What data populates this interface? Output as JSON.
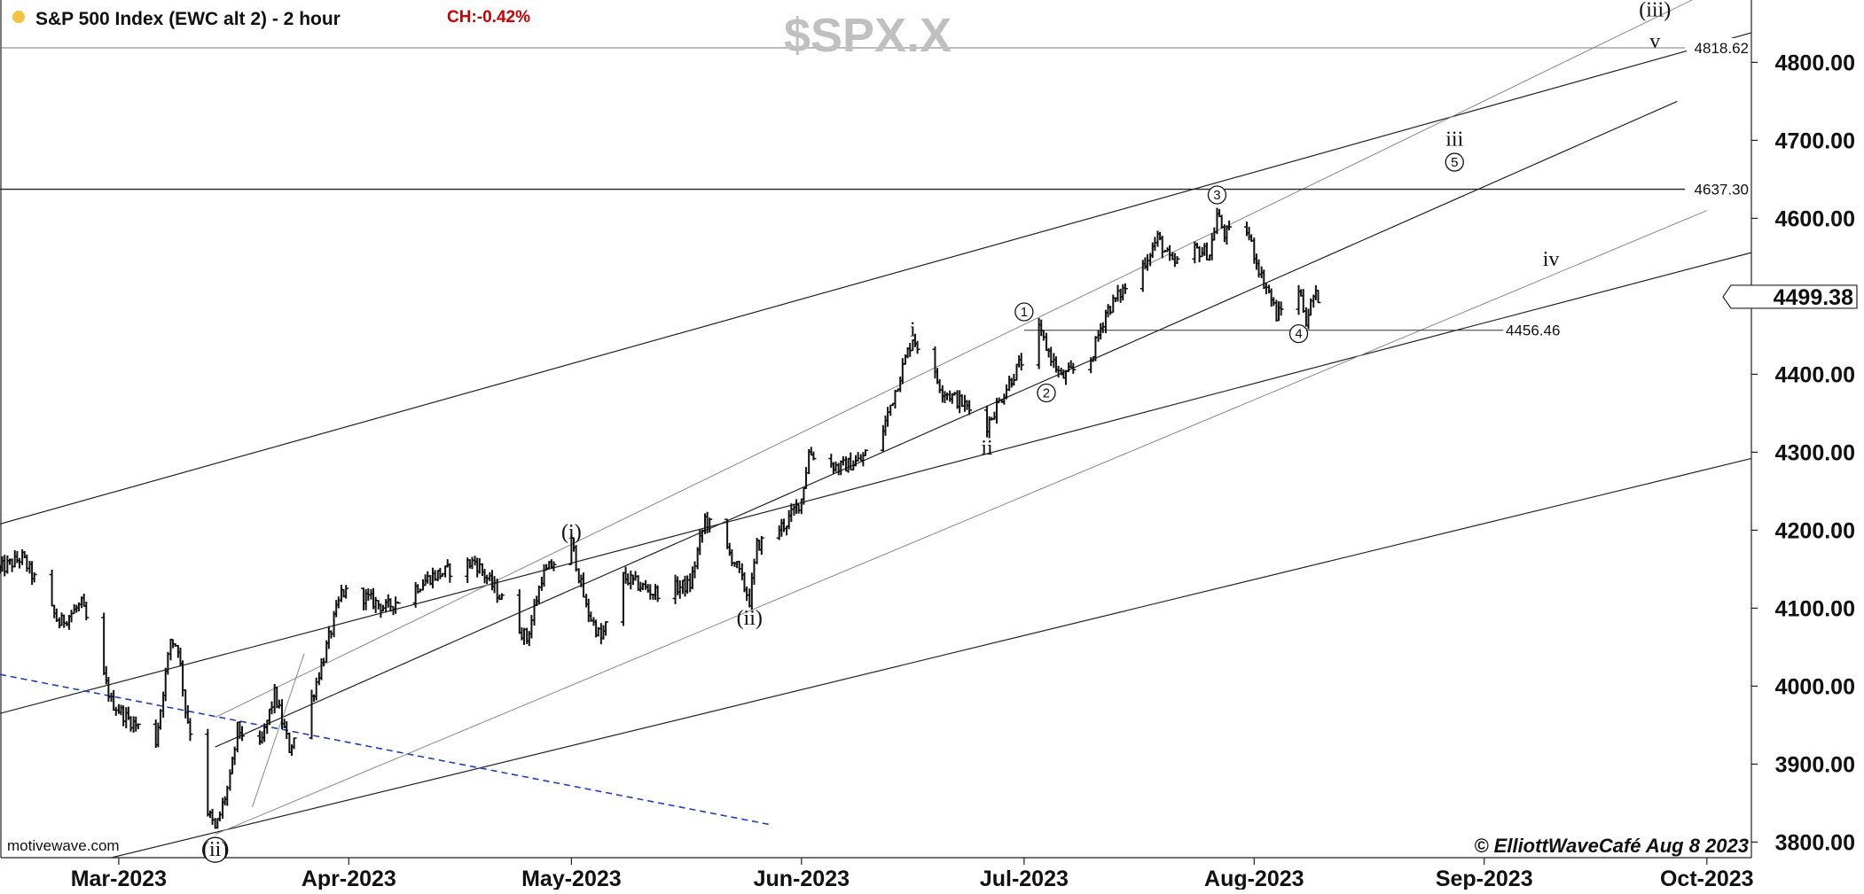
{
  "header": {
    "status_dot_color": "#f5c342",
    "title": "S&P 500 Index (EWC alt 2) - 2 hour",
    "change": "CH:-0.42%",
    "change_color": "#cc0000",
    "symbol": "$SPX.X"
  },
  "footer": {
    "source": "motivewave.com",
    "copyright": "© ElliottWaveCafé Aug 8 2023"
  },
  "chart_data": {
    "type": "ohlc",
    "title": "S&P 500 Index (EWC alt 2) - 2 hour",
    "ylim": [
      3780,
      4880
    ],
    "xlim": [
      "2023-02-13",
      "2023-10-07"
    ],
    "y_ticks": [
      "3800.00",
      "3900.00",
      "4000.00",
      "4100.00",
      "4200.00",
      "4300.00",
      "4400.00",
      "4500.00",
      "4600.00",
      "4700.00",
      "4800.00"
    ],
    "x_ticks": [
      {
        "date": "2023-03-01",
        "label": "Mar-2023"
      },
      {
        "date": "2023-04-01",
        "label": "Apr-2023"
      },
      {
        "date": "2023-05-01",
        "label": "May-2023"
      },
      {
        "date": "2023-06-01",
        "label": "Jun-2023"
      },
      {
        "date": "2023-07-01",
        "label": "Jul-2023"
      },
      {
        "date": "2023-08-01",
        "label": "Aug-2023"
      },
      {
        "date": "2023-09-01",
        "label": "Sep-2023"
      },
      {
        "date": "2023-10-01",
        "label": "Oct-2023"
      }
    ],
    "current_price": "4499.38",
    "price_path": [
      [
        "2023-02-13",
        4150
      ],
      [
        "2023-02-16",
        4165
      ],
      [
        "2023-02-21",
        4080
      ],
      [
        "2023-02-24",
        4105
      ],
      [
        "2023-02-28",
        3980
      ],
      [
        "2023-03-02",
        3960
      ],
      [
        "2023-03-06",
        3930
      ],
      [
        "2023-03-08",
        4060
      ],
      [
        "2023-03-09",
        4050
      ],
      [
        "2023-03-10",
        3970
      ],
      [
        "2023-03-13",
        3840
      ],
      [
        "2023-03-14",
        3815
      ],
      [
        "2023-03-16",
        3880
      ],
      [
        "2023-03-17",
        3945
      ],
      [
        "2023-03-20",
        3920
      ],
      [
        "2023-03-22",
        3990
      ],
      [
        "2023-03-24",
        3920
      ],
      [
        "2023-03-27",
        3985
      ],
      [
        "2023-03-29",
        4050
      ],
      [
        "2023-03-31",
        4120
      ],
      [
        "2023-04-03",
        4115
      ],
      [
        "2023-04-06",
        4100
      ],
      [
        "2023-04-12",
        4140
      ],
      [
        "2023-04-18",
        4160
      ],
      [
        "2023-04-21",
        4120
      ],
      [
        "2023-04-25",
        4060
      ],
      [
        "2023-04-27",
        4140
      ],
      [
        "2023-05-01",
        4185
      ],
      [
        "2023-05-03",
        4100
      ],
      [
        "2023-05-05",
        4060
      ],
      [
        "2023-05-08",
        4140
      ],
      [
        "2023-05-12",
        4120
      ],
      [
        "2023-05-17",
        4130
      ],
      [
        "2023-05-19",
        4215
      ],
      [
        "2023-05-23",
        4160
      ],
      [
        "2023-05-25",
        4110
      ],
      [
        "2023-05-26",
        4180
      ],
      [
        "2023-05-30",
        4210
      ],
      [
        "2023-06-01",
        4240
      ],
      [
        "2023-06-02",
        4300
      ],
      [
        "2023-06-06",
        4280
      ],
      [
        "2023-06-09",
        4290
      ],
      [
        "2023-06-12",
        4330
      ],
      [
        "2023-06-15",
        4420
      ],
      [
        "2023-06-16",
        4448
      ],
      [
        "2023-06-20",
        4380
      ],
      [
        "2023-06-23",
        4360
      ],
      [
        "2023-06-26",
        4335
      ],
      [
        "2023-06-29",
        4390
      ],
      [
        "2023-07-03",
        4455
      ],
      [
        "2023-07-06",
        4395
      ],
      [
        "2023-07-10",
        4420
      ],
      [
        "2023-07-12",
        4480
      ],
      [
        "2023-07-17",
        4540
      ],
      [
        "2023-07-19",
        4575
      ],
      [
        "2023-07-21",
        4540
      ],
      [
        "2023-07-24",
        4560
      ],
      [
        "2023-07-26",
        4555
      ],
      [
        "2023-07-27",
        4605
      ],
      [
        "2023-07-28",
        4580
      ],
      [
        "2023-07-31",
        4585
      ],
      [
        "2023-08-02",
        4525
      ],
      [
        "2023-08-03",
        4505
      ],
      [
        "2023-08-04",
        4475
      ],
      [
        "2023-08-07",
        4510
      ],
      [
        "2023-08-08",
        4470
      ],
      [
        "2023-08-09",
        4499.38
      ]
    ],
    "horizontal_levels": [
      {
        "value": 4818.62,
        "label": "4818.62"
      },
      {
        "value": 4637.3,
        "label": "4637.30"
      },
      {
        "value": 4456.46,
        "label": "4456.46"
      }
    ],
    "wave_labels": [
      {
        "text": "(ii)",
        "style": "circled",
        "date": "2023-03-14",
        "price": 3790
      },
      {
        "text": "(i)",
        "style": "paren",
        "date": "2023-05-01",
        "price": 4198
      },
      {
        "text": "(ii)",
        "style": "paren",
        "date": "2023-05-25",
        "price": 4088
      },
      {
        "text": "i",
        "style": "plain",
        "date": "2023-06-16",
        "price": 4458
      },
      {
        "text": "ii",
        "style": "plain",
        "date": "2023-06-26",
        "price": 4306
      },
      {
        "text": "1",
        "style": "circle",
        "date": "2023-07-01",
        "price": 4480
      },
      {
        "text": "2",
        "style": "circle",
        "date": "2023-07-04",
        "price": 4376
      },
      {
        "text": "3",
        "style": "circle",
        "date": "2023-07-27",
        "price": 4630
      },
      {
        "text": "4",
        "style": "circle",
        "date": "2023-08-07",
        "price": 4452
      },
      {
        "text": "iii",
        "style": "plain",
        "date": "2023-08-28",
        "price": 4702
      },
      {
        "text": "5",
        "style": "circle",
        "date": "2023-08-28",
        "price": 4672
      },
      {
        "text": "iv",
        "style": "plain",
        "date": "2023-09-10",
        "price": 4548
      },
      {
        "text": "v",
        "style": "plain",
        "date": "2023-09-24",
        "price": 4828
      },
      {
        "text": "(iii)",
        "style": "paren",
        "date": "2023-09-24",
        "price": 4868
      }
    ],
    "trend_lines": [
      {
        "from": [
          "2023-02-13",
          4208
        ],
        "to": [
          "2023-10-07",
          4838
        ],
        "color": "#222222",
        "width": 1.2
      },
      {
        "from": [
          "2023-02-13",
          3965
        ],
        "to": [
          "2023-10-07",
          4556
        ],
        "color": "#222222",
        "width": 1.2
      },
      {
        "from": [
          "2023-02-28",
          3780
        ],
        "to": [
          "2023-10-07",
          4292
        ],
        "color": "#222222",
        "width": 1.2
      },
      {
        "from": [
          "2023-03-14",
          3922
        ],
        "to": [
          "2023-09-27",
          4750
        ],
        "color": "#222222",
        "width": 1.2
      },
      {
        "from": [
          "2023-03-14",
          3810
        ],
        "to": [
          "2023-10-01",
          4610
        ],
        "color": "#888888",
        "width": 1
      },
      {
        "from": [
          "2023-03-14",
          3960
        ],
        "to": [
          "2023-09-29",
          4880
        ],
        "color": "#888888",
        "width": 1
      },
      {
        "from": [
          "2023-03-19",
          3845
        ],
        "to": [
          "2023-03-26",
          4042
        ],
        "color": "#888888",
        "width": 1
      },
      {
        "from": [
          "2023-02-13",
          4015
        ],
        "to": [
          "2023-05-28",
          3822
        ],
        "color": "#1f3fbf",
        "width": 1.6,
        "dashed": true
      }
    ]
  }
}
